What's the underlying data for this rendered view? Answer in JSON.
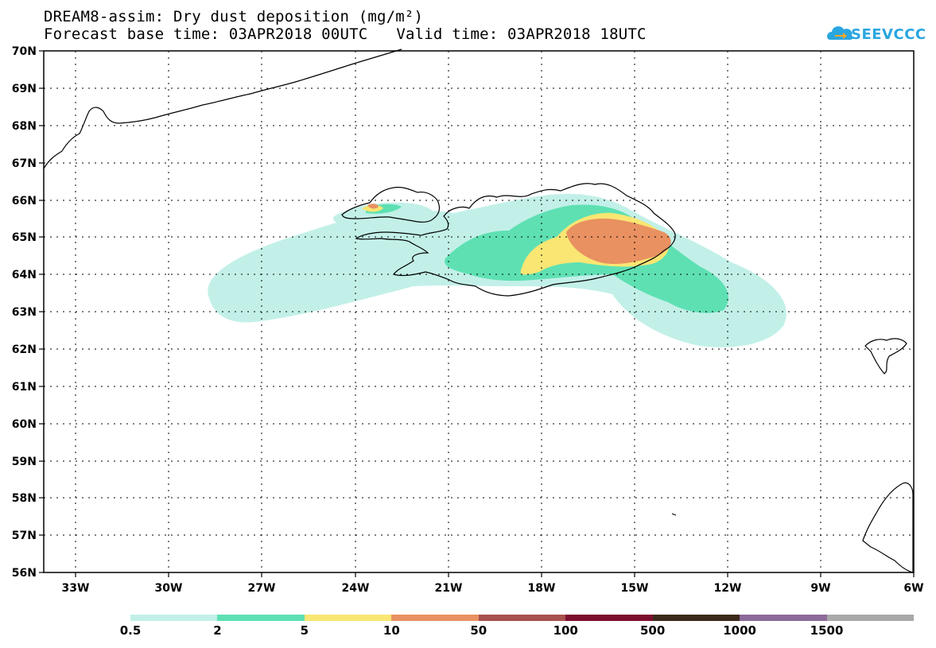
{
  "title": {
    "line1": "DREAM8-assim: Dry dust deposition (mg/m²)",
    "forecast_base": "Forecast base time: 03APR2018 00UTC",
    "valid_time": "Valid time: 03APR2018 18UTC"
  },
  "logo": {
    "text": "SEEVCCC",
    "icon": "cloud-arrow-icon",
    "color": "#2aa6e0"
  },
  "axes": {
    "lon_labels": [
      "33W",
      "30W",
      "27W",
      "24W",
      "21W",
      "18W",
      "15W",
      "12W",
      "9W",
      "6W"
    ],
    "lat_labels": [
      "70N",
      "69N",
      "68N",
      "67N",
      "66N",
      "65N",
      "64N",
      "63N",
      "62N",
      "61N",
      "60N",
      "59N",
      "58N",
      "57N",
      "56N"
    ],
    "grid": "dotted"
  },
  "colorbar": {
    "labels": [
      "0.5",
      "2",
      "5",
      "10",
      "50",
      "100",
      "500",
      "1000",
      "1500"
    ],
    "colors": [
      "#c2f0e8",
      "#5ee0b3",
      "#f9e673",
      "#e99161",
      "#a8514e",
      "#7d0f2e",
      "#3c2a1a",
      "#8c6a9a",
      "#a9a9a9"
    ]
  },
  "chart_data": {
    "type": "heatmap",
    "title": "DREAM8-assim: Dry dust deposition (mg/m²)",
    "variable": "Dry dust deposition",
    "units": "mg/m²",
    "region": {
      "lon_range": [
        "34W",
        "6W"
      ],
      "lat_range": [
        "56N",
        "70N"
      ]
    },
    "contour_levels": [
      0.5,
      2,
      5,
      10,
      50,
      100,
      500,
      1000,
      1500
    ],
    "observed_max_band": "10-50",
    "features": [
      {
        "area": "south-east Iceland plume",
        "max_band": "10-50"
      },
      {
        "area": "West Fjords, Iceland",
        "max_band": "10-50"
      },
      {
        "area": "ocean south-west of Iceland",
        "max_band": "0.5-2"
      },
      {
        "area": "ocean south-east of Iceland",
        "max_band": "2-5"
      }
    ]
  }
}
